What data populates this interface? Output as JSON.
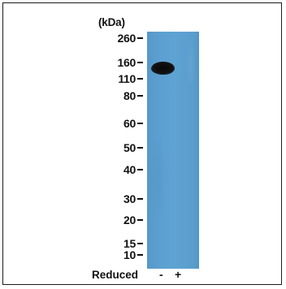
{
  "markers": {
    "unit": "(kDa)",
    "items": [
      {
        "label": "260",
        "kda": 260
      },
      {
        "label": "160",
        "kda": 160
      },
      {
        "label": "110",
        "kda": 110
      },
      {
        "label": "80",
        "kda": 80
      },
      {
        "label": "60",
        "kda": 60
      },
      {
        "label": "50",
        "kda": 50
      },
      {
        "label": "40",
        "kda": 40
      },
      {
        "label": "30",
        "kda": 30
      },
      {
        "label": "20",
        "kda": 20
      },
      {
        "label": "15",
        "kda": 15
      },
      {
        "label": "10",
        "kda": 10
      }
    ]
  },
  "lanes": {
    "condition_label": "Reduced",
    "items": [
      {
        "sign": "-",
        "band_kda": 150
      },
      {
        "sign": "+",
        "band_kda": null
      }
    ]
  },
  "colors": {
    "membrane": "#5ea3d3",
    "band": "#0a0a0a"
  }
}
